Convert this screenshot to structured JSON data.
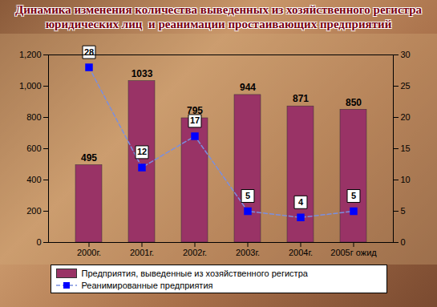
{
  "chart_data": {
    "type": "bar",
    "title": "Динамика изменения количества выведенных из хозяйственного регистра юридических лиц  и реанимации простаивающих предприятий",
    "categories": [
      "2000г.",
      "2001г.",
      "2002г.",
      "2003г.",
      "2004г.",
      "2005г ожид"
    ],
    "series": [
      {
        "name": "Предприятия, выведенные из хозяйственного регистра",
        "type": "bar",
        "color": "#993366",
        "values": [
          495,
          1033,
          795,
          944,
          871,
          850
        ]
      },
      {
        "name": "Реанимированные предприятия",
        "type": "line",
        "axis": "y2",
        "color": "#0000ff",
        "marker": "square",
        "line_style": "dashed",
        "values": [
          28,
          12,
          17,
          5,
          4,
          5
        ]
      }
    ],
    "ylim": [
      0,
      1200
    ],
    "yticks": [
      0,
      200,
      400,
      600,
      800,
      1000,
      1200
    ],
    "y2lim": [
      0,
      30
    ],
    "y2ticks": [
      0,
      5,
      10,
      15,
      20,
      25,
      30
    ],
    "data_labels": true,
    "legend": "bottom",
    "grid": false
  }
}
